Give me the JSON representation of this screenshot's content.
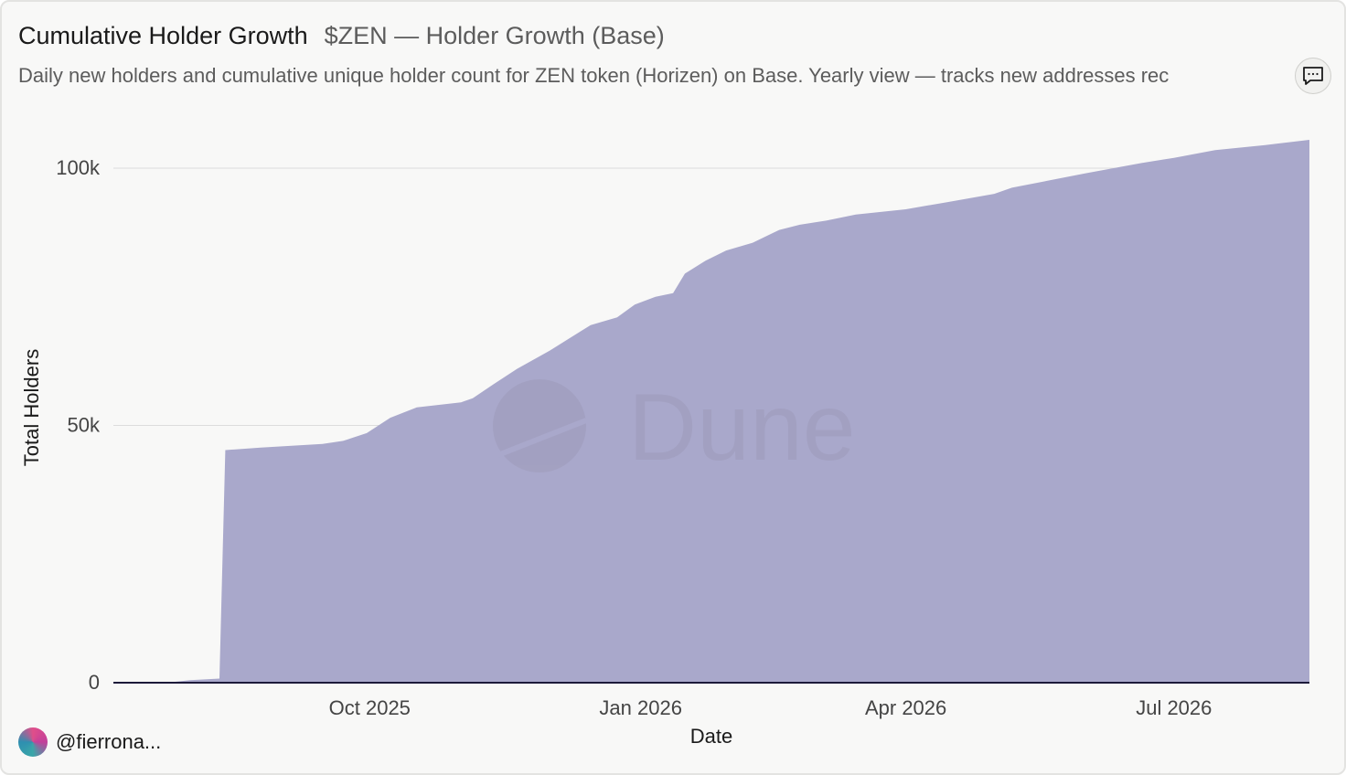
{
  "header": {
    "title": "Cumulative Holder Growth",
    "subtitle": "$ZEN — Holder Growth (Base)",
    "description": "Daily new holders and cumulative unique holder count for ZEN token (Horizen) on Base. Yearly view — tracks new addresses rec"
  },
  "footer": {
    "author": "@fierrona..."
  },
  "watermark": {
    "text": "Dune"
  },
  "colors": {
    "area_fill": "#a9a8cb",
    "axis_line": "#1c1a3a",
    "grid": "#dcdcdc",
    "background": "#f8f8f7"
  },
  "icons": {
    "comment": "comment-icon"
  },
  "chart_data": {
    "type": "area",
    "title": "Cumulative Holder Growth",
    "xlabel": "Date",
    "ylabel": "Total Holders",
    "ylim": [
      0,
      100000
    ],
    "yticks": [
      0,
      50000,
      100000
    ],
    "ytick_labels": [
      "0",
      "50k",
      "100k"
    ],
    "xlim": [
      "2025-07-06",
      "2026-08-16"
    ],
    "xticks": [
      "2025-10-01",
      "2026-01-01",
      "2026-04-01",
      "2026-07-01"
    ],
    "xtick_labels": [
      "Oct 2025",
      "Jan 2026",
      "Apr 2026",
      "Jul 2026"
    ],
    "grid": true,
    "series": [
      {
        "points": [
          [
            "2025-07-06",
            0
          ],
          [
            "2025-07-24",
            0
          ],
          [
            "2025-08-01",
            500
          ],
          [
            "2025-08-11",
            800
          ],
          [
            "2025-08-13",
            45200
          ],
          [
            "2025-08-25",
            45700
          ],
          [
            "2025-09-15",
            46400
          ],
          [
            "2025-09-22",
            47000
          ],
          [
            "2025-09-30",
            48500
          ],
          [
            "2025-10-08",
            51500
          ],
          [
            "2025-10-17",
            53500
          ],
          [
            "2025-11-01",
            54500
          ],
          [
            "2025-11-05",
            55300
          ],
          [
            "2025-11-12",
            58000
          ],
          [
            "2025-11-20",
            61000
          ],
          [
            "2025-12-01",
            64500
          ],
          [
            "2025-12-08",
            67000
          ],
          [
            "2025-12-15",
            69500
          ],
          [
            "2025-12-24",
            71000
          ],
          [
            "2025-12-30",
            73500
          ],
          [
            "2026-01-06",
            75000
          ],
          [
            "2026-01-12",
            75700
          ],
          [
            "2026-01-16",
            79500
          ],
          [
            "2026-01-23",
            82000
          ],
          [
            "2026-01-30",
            84000
          ],
          [
            "2026-02-08",
            85500
          ],
          [
            "2026-02-17",
            88000
          ],
          [
            "2026-02-24",
            89000
          ],
          [
            "2026-03-05",
            89800
          ],
          [
            "2026-03-15",
            91000
          ],
          [
            "2026-04-01",
            92000
          ],
          [
            "2026-04-15",
            93400
          ],
          [
            "2026-05-01",
            95000
          ],
          [
            "2026-05-07",
            96200
          ],
          [
            "2026-06-01",
            99000
          ],
          [
            "2026-06-20",
            101000
          ],
          [
            "2026-07-01",
            102000
          ],
          [
            "2026-07-15",
            103500
          ],
          [
            "2026-08-01",
            104500
          ],
          [
            "2026-08-16",
            105500
          ]
        ]
      }
    ]
  }
}
